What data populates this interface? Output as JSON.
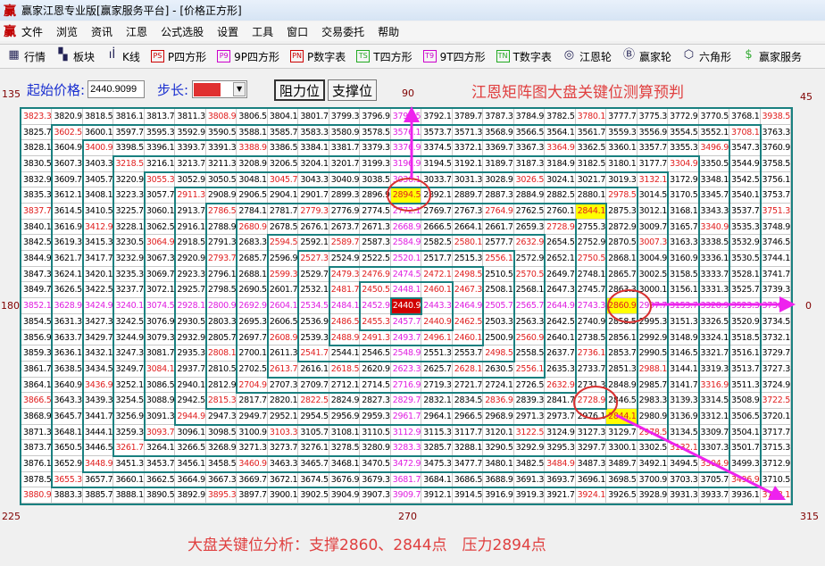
{
  "window": {
    "title": "赢家江恩专业版[赢家服务平台] - [价格正方形]",
    "logo": "赢"
  },
  "menu": [
    "文件",
    "浏览",
    "资讯",
    "江恩",
    "公式选股",
    "设置",
    "工具",
    "窗口",
    "交易委托",
    "帮助"
  ],
  "toolbar": [
    {
      "label": "行情",
      "icon": "table-icon",
      "glyph": "▦"
    },
    {
      "label": "板块",
      "icon": "blocks-icon",
      "glyph": "▚"
    },
    {
      "label": "K线",
      "icon": "candlestick-icon",
      "glyph": "ıİ"
    },
    {
      "label": "P四方形",
      "icon": "ps-icon",
      "glyph": "PS"
    },
    {
      "label": "9P四方形",
      "icon": "p9-icon",
      "glyph": "P9"
    },
    {
      "label": "P数字表",
      "icon": "pn-icon",
      "glyph": "PN"
    },
    {
      "label": "T四方形",
      "icon": "ts-icon",
      "glyph": "TS"
    },
    {
      "label": "9T四方形",
      "icon": "t9-icon",
      "glyph": "T9"
    },
    {
      "label": "T数字表",
      "icon": "tn-icon",
      "glyph": "TN"
    },
    {
      "label": "江恩轮",
      "icon": "gann-wheel-icon",
      "glyph": "◎"
    },
    {
      "label": "赢家轮",
      "icon": "big-wheel-icon",
      "glyph": "Ⓑ"
    },
    {
      "label": "六角形",
      "icon": "hexagon-icon",
      "glyph": "⬡"
    },
    {
      "label": "赢家服务",
      "icon": "dollar-icon",
      "glyph": "$"
    }
  ],
  "controls": {
    "start_label": "起始价格:",
    "start_value": "2440.9099",
    "step_label": "步长:",
    "step_color": "#e03030",
    "resistance_button": "阻力位",
    "support_button": "支撑位"
  },
  "heading": "江恩矩阵图大盘关键位测算预判",
  "angles": {
    "a135": "135",
    "a90": "90",
    "a45": "45",
    "a180": "180",
    "a0": "0",
    "a225": "225",
    "a270": "270",
    "a315": "315"
  },
  "grid": {
    "center": 2440.9,
    "step": 2.4,
    "rings": 12,
    "highlighted": [
      "2894.50",
      "2860.90",
      "2844.10"
    ],
    "colors": {
      "cardinal": "#e020e0",
      "diagonal": "#e02020",
      "inner": "#a00000",
      "normal": "#000000",
      "highlight_bg": "#ffff00",
      "center_bg": "#d00000",
      "ring_line": "#1a8080",
      "annotation": "#ee22ee"
    }
  },
  "note": "大盘关键位分析：支撑2860、2844点　压力2894点"
}
